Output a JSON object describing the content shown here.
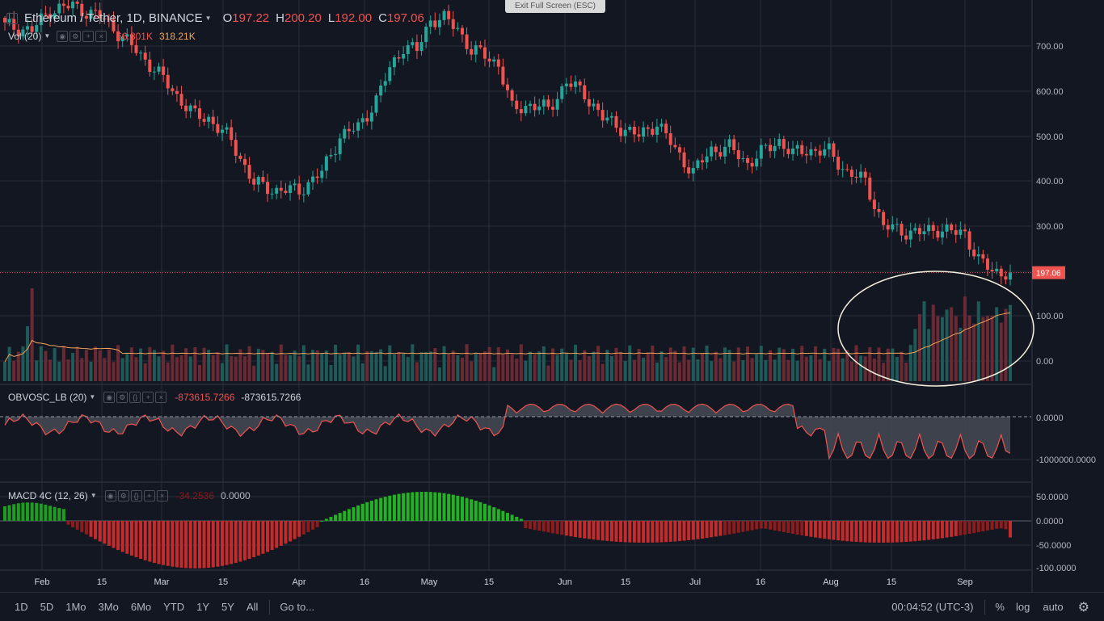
{
  "toolbar": {
    "exit_fullscreen": "Exit Full Screen (ESC)"
  },
  "symbol": {
    "title": "Ethereum / Tether, 1D, BINANCE",
    "o_label": "O",
    "o_value": "197.22",
    "h_label": "H",
    "h_value": "200.20",
    "l_label": "L",
    "l_value": "192.00",
    "c_label": "C",
    "c_value": "197.06"
  },
  "vol_legend": {
    "name": "Vol (20)",
    "v1": "66.801K",
    "v2": "318.21K"
  },
  "obv_legend": {
    "name": "OBVOSC_LB (20)",
    "v1": "-873615.7266",
    "v2": "-873615.7266"
  },
  "macd_legend": {
    "name": "MACD 4C (12, 26)",
    "v1": "-34.2536",
    "v2": "0.0000"
  },
  "price_axis": [
    "700.00",
    "600.00",
    "500.00",
    "400.00",
    "300.00",
    "100.00",
    "0.00"
  ],
  "current_price": "197.06",
  "obv_axis": [
    "0.0000",
    "-1000000.0000"
  ],
  "macd_axis": [
    "50.0000",
    "0.0000",
    "-50.0000",
    "-100.0000"
  ],
  "date_axis": [
    "Feb",
    "15",
    "Mar",
    "15",
    "Apr",
    "16",
    "May",
    "15",
    "Jun",
    "15",
    "Jul",
    "16",
    "Aug",
    "15",
    "Sep"
  ],
  "bottom": {
    "timeframes": [
      "1D",
      "5D",
      "1Mo",
      "3Mo",
      "6Mo",
      "YTD",
      "1Y",
      "5Y",
      "All"
    ],
    "goto": "Go to...",
    "clock": "00:04:52 (UTC-3)",
    "percent": "%",
    "log": "log",
    "auto": "auto"
  },
  "colors": {
    "bg": "#131722",
    "up": "#26a69a",
    "down": "#ef5350",
    "grid": "#2a2e39",
    "volma": "#f0a35a",
    "annotation": "#f5f0dc"
  },
  "chart_data": {
    "type": "candlestick",
    "symbol": "ETH/USDT",
    "interval": "1D",
    "anchors_close": [
      [
        0,
        745
      ],
      [
        6,
        735
      ],
      [
        10,
        780
      ],
      [
        15,
        790
      ],
      [
        22,
        760
      ],
      [
        28,
        700
      ],
      [
        33,
        650
      ],
      [
        38,
        590
      ],
      [
        42,
        545
      ],
      [
        45,
        540
      ],
      [
        50,
        490
      ],
      [
        55,
        395
      ],
      [
        60,
        380
      ],
      [
        65,
        380
      ],
      [
        70,
        420
      ],
      [
        74,
        500
      ],
      [
        78,
        520
      ],
      [
        82,
        580
      ],
      [
        85,
        650
      ],
      [
        88,
        700
      ],
      [
        91,
        690
      ],
      [
        94,
        760
      ],
      [
        97,
        760
      ],
      [
        100,
        740
      ],
      [
        103,
        690
      ],
      [
        106,
        680
      ],
      [
        109,
        660
      ],
      [
        112,
        560
      ],
      [
        116,
        570
      ],
      [
        120,
        560
      ],
      [
        124,
        620
      ],
      [
        128,
        595
      ],
      [
        132,
        540
      ],
      [
        136,
        520
      ],
      [
        140,
        500
      ],
      [
        144,
        530
      ],
      [
        148,
        470
      ],
      [
        152,
        420
      ],
      [
        156,
        470
      ],
      [
        160,
        475
      ],
      [
        164,
        440
      ],
      [
        168,
        470
      ],
      [
        171,
        490
      ],
      [
        174,
        460
      ],
      [
        177,
        470
      ],
      [
        182,
        465
      ],
      [
        186,
        420
      ],
      [
        190,
        400
      ],
      [
        194,
        300
      ],
      [
        198,
        290
      ],
      [
        202,
        285
      ],
      [
        206,
        295
      ],
      [
        210,
        285
      ],
      [
        212,
        285
      ],
      [
        215,
        225
      ],
      [
        218,
        200
      ],
      [
        222,
        197.06
      ]
    ],
    "volume_ma_note": "20-period moving average over volume",
    "obv_range": [
      -1000000,
      0
    ],
    "macd_range": [
      -100,
      50
    ]
  }
}
